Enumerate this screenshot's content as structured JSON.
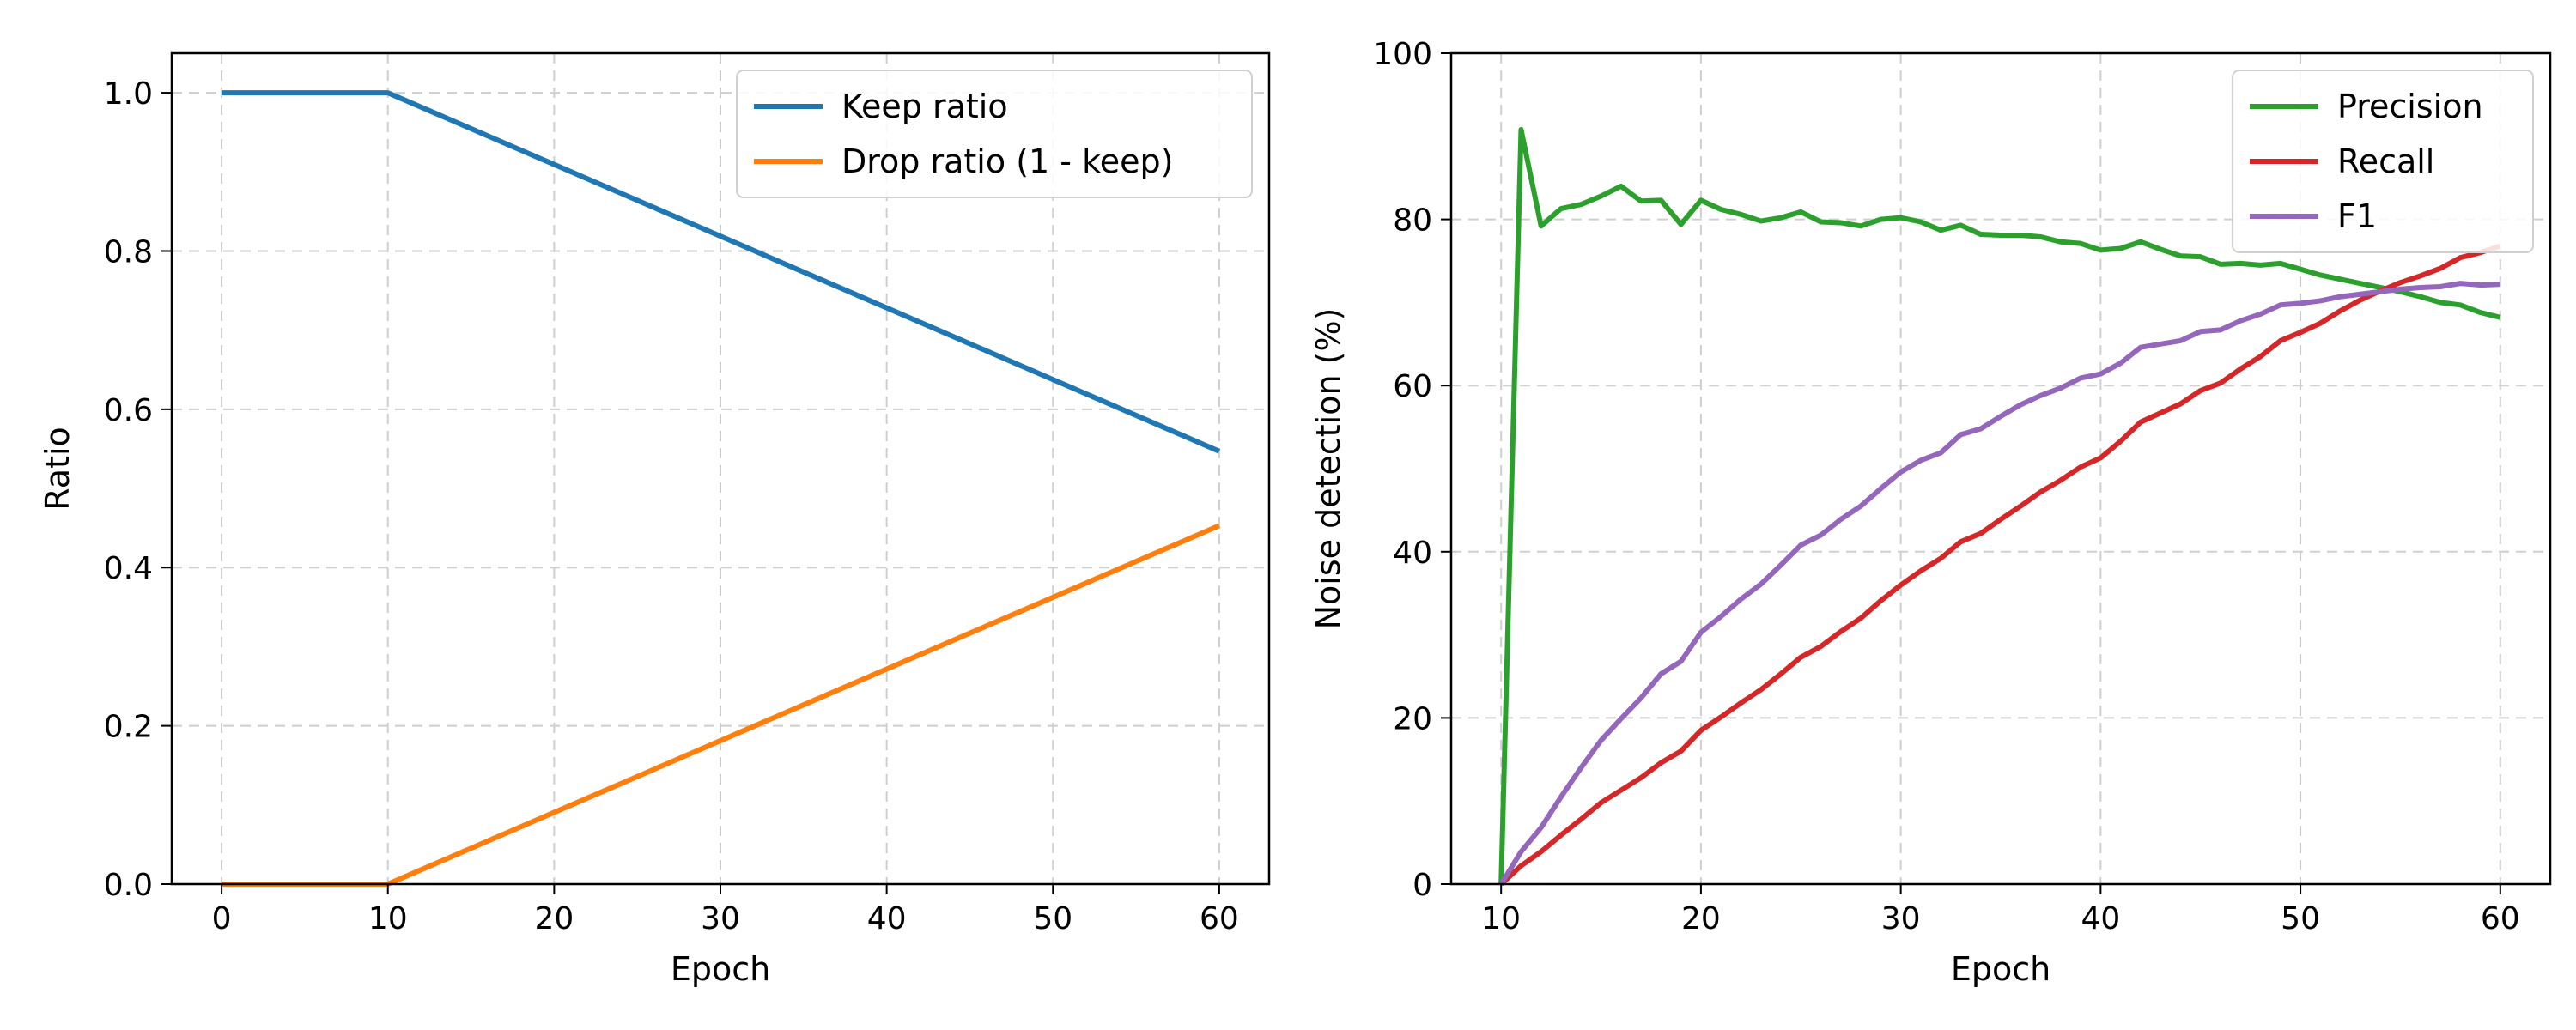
{
  "chart_data": [
    {
      "type": "line",
      "title": "",
      "xlabel": "Epoch",
      "ylabel": "Ratio",
      "xlim": [
        -3,
        63
      ],
      "ylim": [
        0,
        1.05
      ],
      "xticks": [
        0,
        10,
        20,
        30,
        40,
        50,
        60
      ],
      "yticks": [
        0.0,
        0.2,
        0.4,
        0.6,
        0.8,
        1.0
      ],
      "xtick_labels": [
        "0",
        "10",
        "20",
        "30",
        "40",
        "50",
        "60"
      ],
      "ytick_labels": [
        "0.0",
        "0.2",
        "0.4",
        "0.6",
        "0.8",
        "1.0"
      ],
      "grid": true,
      "legend_position": "top-right",
      "series": [
        {
          "name": "Keep ratio",
          "color": "#1f77b4",
          "x": [
            0,
            10,
            60
          ],
          "y": [
            1.0,
            1.0,
            0.547
          ]
        },
        {
          "name": "Drop ratio (1 - keep)",
          "color": "#ff7f0e",
          "x": [
            0,
            10,
            60
          ],
          "y": [
            0.0,
            0.0,
            0.453
          ]
        }
      ]
    },
    {
      "type": "line",
      "title": "",
      "xlabel": "Epoch",
      "ylabel": "Noise detection (%)",
      "xlim": [
        7.5,
        62.5
      ],
      "ylim": [
        0,
        100
      ],
      "xticks": [
        10,
        20,
        30,
        40,
        50,
        60
      ],
      "yticks": [
        0,
        20,
        40,
        60,
        80,
        100
      ],
      "xtick_labels": [
        "10",
        "20",
        "30",
        "40",
        "50",
        "60"
      ],
      "ytick_labels": [
        "0",
        "20",
        "40",
        "60",
        "80",
        "100"
      ],
      "grid": true,
      "legend_position": "top-right",
      "series": [
        {
          "name": "Precision",
          "color": "#2ca02c",
          "x": [
            10,
            11,
            12,
            13,
            14,
            15,
            16,
            17,
            18,
            19,
            20,
            21,
            22,
            23,
            24,
            25,
            26,
            27,
            28,
            29,
            30,
            31,
            32,
            33,
            34,
            35,
            36,
            37,
            38,
            39,
            40,
            41,
            42,
            43,
            44,
            45,
            46,
            47,
            48,
            49,
            50,
            51,
            52,
            53,
            54,
            55,
            56,
            57,
            58,
            59,
            60
          ],
          "y": [
            0,
            90.8,
            79.2,
            81.3,
            81.8,
            82.8,
            84.0,
            82.2,
            82.3,
            79.4,
            82.3,
            81.2,
            80.6,
            79.8,
            80.2,
            80.9,
            79.7,
            79.6,
            79.2,
            80.0,
            80.2,
            79.7,
            78.7,
            79.3,
            78.2,
            78.1,
            78.1,
            77.9,
            77.3,
            77.1,
            76.3,
            76.5,
            77.3,
            76.4,
            75.6,
            75.5,
            74.6,
            74.7,
            74.5,
            74.7,
            74.0,
            73.3,
            72.8,
            72.3,
            71.8,
            71.3,
            70.7,
            70.0,
            69.7,
            68.8,
            68.2
          ]
        },
        {
          "name": "Recall",
          "color": "#d62728",
          "x": [
            10,
            11,
            12,
            13,
            14,
            15,
            16,
            17,
            18,
            19,
            20,
            21,
            22,
            23,
            24,
            25,
            26,
            27,
            28,
            29,
            30,
            31,
            32,
            33,
            34,
            35,
            36,
            37,
            38,
            39,
            40,
            41,
            42,
            43,
            44,
            45,
            46,
            47,
            48,
            49,
            50,
            51,
            52,
            53,
            54,
            55,
            56,
            57,
            58,
            59,
            60
          ],
          "y": [
            0,
            2.2,
            3.9,
            5.9,
            7.8,
            9.8,
            11.3,
            12.8,
            14.6,
            16.0,
            18.5,
            20.1,
            21.8,
            23.4,
            25.3,
            27.3,
            28.6,
            30.4,
            32.0,
            34.1,
            36.0,
            37.7,
            39.2,
            41.2,
            42.2,
            43.9,
            45.5,
            47.2,
            48.6,
            50.2,
            51.3,
            53.3,
            55.6,
            56.7,
            57.8,
            59.4,
            60.3,
            62.0,
            63.5,
            65.4,
            66.4,
            67.5,
            69.0,
            70.3,
            71.4,
            72.4,
            73.2,
            74.1,
            75.4,
            76.0,
            76.8
          ]
        },
        {
          "name": "F1",
          "color": "#9467bd",
          "x": [
            10,
            11,
            12,
            13,
            14,
            15,
            16,
            17,
            18,
            19,
            20,
            21,
            22,
            23,
            24,
            25,
            26,
            27,
            28,
            29,
            30,
            31,
            32,
            33,
            34,
            35,
            36,
            37,
            38,
            39,
            40,
            41,
            42,
            43,
            44,
            45,
            46,
            47,
            48,
            49,
            50,
            51,
            52,
            53,
            54,
            55,
            56,
            57,
            58,
            59,
            60
          ],
          "y": [
            0,
            3.9,
            6.8,
            10.5,
            14.0,
            17.3,
            19.9,
            22.4,
            25.3,
            26.8,
            30.3,
            32.2,
            34.3,
            36.1,
            38.4,
            40.8,
            42.0,
            43.9,
            45.5,
            47.6,
            49.6,
            51.0,
            51.9,
            54.1,
            54.8,
            56.3,
            57.7,
            58.8,
            59.7,
            60.9,
            61.4,
            62.7,
            64.6,
            65.0,
            65.4,
            66.5,
            66.7,
            67.8,
            68.6,
            69.7,
            69.9,
            70.2,
            70.7,
            71.0,
            71.3,
            71.6,
            71.8,
            71.9,
            72.3,
            72.1,
            72.2
          ]
        }
      ]
    }
  ]
}
